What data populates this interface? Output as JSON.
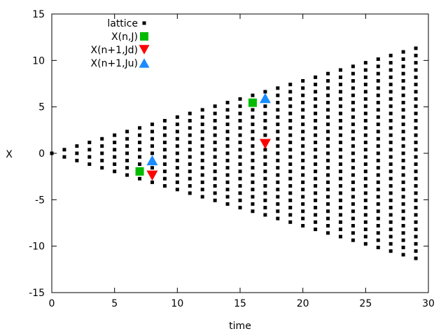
{
  "chart_data": {
    "type": "scatter",
    "xlabel": "time",
    "ylabel": "X",
    "xlim": [
      0,
      30
    ],
    "ylim": [
      -15,
      15
    ],
    "x_ticks": [
      0,
      5,
      10,
      15,
      20,
      25,
      30
    ],
    "y_ticks": [
      -15,
      -10,
      -5,
      0,
      5,
      10,
      15
    ],
    "x_tick_labels": [
      "0",
      "5",
      "10",
      "15",
      "20",
      "25",
      "30"
    ],
    "y_tick_labels": [
      "-15",
      "-10",
      "-5",
      "0",
      "5",
      "10",
      "15"
    ],
    "grid": false,
    "legend_position": "top-left",
    "lattice": {
      "time_max": 29,
      "spacing": 0.39,
      "description_rule": "at time n, points at X = (2j - n) * spacing for j = 0..n"
    },
    "series": [
      {
        "name": "lattice",
        "marker": "square",
        "color": "#000000",
        "points": "lattice"
      },
      {
        "name": "X(n,J)",
        "marker": "square",
        "color": "#00bb00",
        "points": [
          {
            "x": 7,
            "y": -1.95
          },
          {
            "x": 16,
            "y": 5.45
          }
        ]
      },
      {
        "name": "X(n+1,Jd)",
        "marker": "triangle-down",
        "color": "#ff0000",
        "points": [
          {
            "x": 8,
            "y": -2.4
          },
          {
            "x": 17,
            "y": 1.0
          }
        ]
      },
      {
        "name": "X(n+1,Ju)",
        "marker": "triangle-up",
        "color": "#1a8cff",
        "points": [
          {
            "x": 8,
            "y": -0.75
          },
          {
            "x": 17,
            "y": 5.95
          }
        ]
      }
    ]
  }
}
